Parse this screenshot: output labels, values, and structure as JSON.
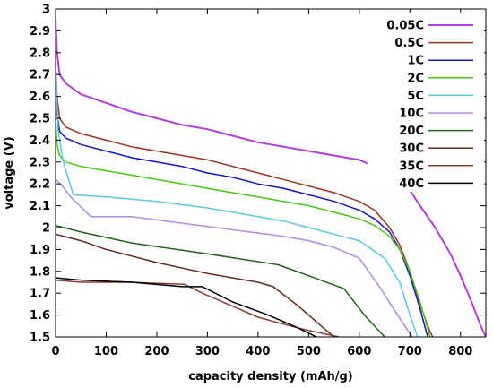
{
  "chart_data": {
    "type": "line",
    "title": "",
    "xlabel": "capacity density (mAh/g)",
    "ylabel": "voltage (V)",
    "xlim": [
      0,
      850
    ],
    "ylim": [
      1.5,
      3.0
    ],
    "x_ticks": [
      0,
      100,
      200,
      300,
      400,
      500,
      600,
      700,
      800
    ],
    "y_ticks": [
      1.5,
      1.6,
      1.7,
      1.8,
      1.9,
      2.0,
      2.1,
      2.2,
      2.3,
      2.4,
      2.5,
      2.6,
      2.7,
      2.8,
      2.9,
      3.0
    ],
    "grid": false,
    "legend_position": "top-right",
    "series": [
      {
        "name": "0.05C",
        "color": "#b43cdc",
        "x": [
          0,
          3,
          8,
          20,
          50,
          100,
          150,
          200,
          250,
          300,
          350,
          400,
          450,
          500,
          550,
          600,
          650,
          680,
          700,
          720,
          750,
          780,
          800,
          820,
          840,
          850
        ],
        "y": [
          2.95,
          2.8,
          2.7,
          2.66,
          2.61,
          2.57,
          2.53,
          2.5,
          2.47,
          2.45,
          2.42,
          2.39,
          2.37,
          2.35,
          2.33,
          2.31,
          2.26,
          2.22,
          2.17,
          2.1,
          2.0,
          1.88,
          1.78,
          1.67,
          1.55,
          1.5
        ]
      },
      {
        "name": "0.5C",
        "color": "#a0321e",
        "x": [
          0,
          3,
          8,
          20,
          50,
          100,
          150,
          200,
          250,
          300,
          350,
          400,
          450,
          500,
          550,
          600,
          630,
          660,
          680,
          700,
          720,
          735,
          745
        ],
        "y": [
          2.75,
          2.6,
          2.5,
          2.46,
          2.43,
          2.4,
          2.37,
          2.35,
          2.33,
          2.31,
          2.28,
          2.25,
          2.22,
          2.19,
          2.16,
          2.12,
          2.08,
          2.0,
          1.92,
          1.8,
          1.65,
          1.55,
          1.5
        ]
      },
      {
        "name": "1C",
        "color": "#1414c8",
        "x": [
          0,
          3,
          8,
          20,
          50,
          100,
          150,
          200,
          250,
          300,
          350,
          400,
          450,
          500,
          550,
          600,
          630,
          660,
          680,
          700,
          720,
          735
        ],
        "y": [
          2.65,
          2.52,
          2.44,
          2.41,
          2.38,
          2.35,
          2.32,
          2.3,
          2.28,
          2.25,
          2.23,
          2.2,
          2.18,
          2.15,
          2.12,
          2.08,
          2.04,
          1.98,
          1.9,
          1.78,
          1.63,
          1.5
        ]
      },
      {
        "name": "2C",
        "color": "#46c814",
        "x": [
          0,
          3,
          8,
          20,
          50,
          100,
          150,
          200,
          250,
          300,
          350,
          400,
          450,
          500,
          550,
          600,
          630,
          660,
          680,
          700,
          720,
          740
        ],
        "y": [
          2.5,
          2.38,
          2.33,
          2.3,
          2.28,
          2.26,
          2.24,
          2.22,
          2.2,
          2.18,
          2.16,
          2.14,
          2.12,
          2.1,
          2.07,
          2.04,
          2.01,
          1.96,
          1.9,
          1.8,
          1.66,
          1.5
        ]
      },
      {
        "name": "5C",
        "color": "#5ac8e6",
        "x": [
          0,
          5,
          15,
          35,
          100,
          150,
          200,
          300,
          400,
          450,
          500,
          550,
          600,
          650,
          680,
          700,
          715
        ],
        "y": [
          2.75,
          2.45,
          2.3,
          2.15,
          2.14,
          2.13,
          2.12,
          2.09,
          2.05,
          2.03,
          2.0,
          1.97,
          1.94,
          1.86,
          1.75,
          1.6,
          1.5
        ]
      },
      {
        "name": "10C",
        "color": "#aa8ce6",
        "x": [
          0,
          10,
          30,
          70,
          150,
          250,
          350,
          450,
          500,
          550,
          600,
          640,
          670,
          690,
          705
        ],
        "y": [
          2.22,
          2.2,
          2.14,
          2.05,
          2.05,
          2.02,
          1.99,
          1.96,
          1.94,
          1.91,
          1.86,
          1.73,
          1.62,
          1.55,
          1.5
        ]
      },
      {
        "name": "20C",
        "color": "#1e6414",
        "x": [
          0,
          50,
          150,
          300,
          440,
          500,
          570,
          610,
          650
        ],
        "y": [
          2.01,
          1.98,
          1.93,
          1.88,
          1.83,
          1.78,
          1.72,
          1.6,
          1.5
        ]
      },
      {
        "name": "30C",
        "color": "#64281e",
        "x": [
          0,
          50,
          100,
          150,
          200,
          300,
          400,
          430,
          480,
          520,
          550
        ],
        "y": [
          1.97,
          1.94,
          1.9,
          1.87,
          1.84,
          1.79,
          1.75,
          1.73,
          1.64,
          1.56,
          1.5
        ]
      },
      {
        "name": "35C",
        "color": "#8c3c32",
        "x": [
          0,
          50,
          150,
          255,
          290,
          400,
          480,
          520,
          560
        ],
        "y": [
          1.76,
          1.75,
          1.75,
          1.74,
          1.7,
          1.59,
          1.54,
          1.52,
          1.5
        ]
      },
      {
        "name": "40C",
        "color": "#000000",
        "x": [
          0,
          50,
          150,
          250,
          290,
          350,
          420,
          480,
          515
        ],
        "y": [
          1.77,
          1.76,
          1.75,
          1.73,
          1.73,
          1.66,
          1.6,
          1.54,
          1.5
        ]
      }
    ]
  }
}
